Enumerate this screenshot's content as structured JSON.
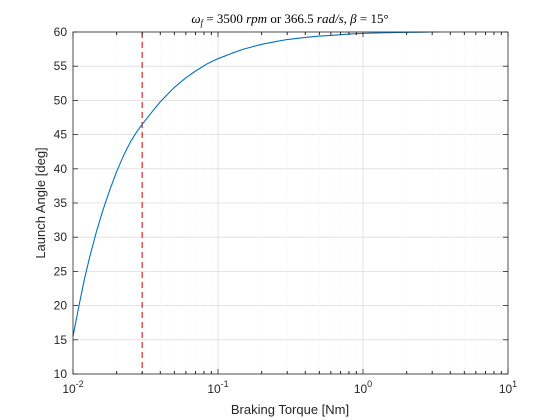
{
  "chart_data": {
    "type": "line",
    "title": {
      "omega": "ω",
      "omega_sub": "f",
      "eq": " = 3500 ",
      "rpm": "rpm",
      "or": " or 366.5 ",
      "rads": "rad/s",
      "sep": ", ",
      "beta": "β",
      "beta_val": " = 15°"
    },
    "xlabel": "Braking Torque [Nm]",
    "ylabel": "Launch Angle [deg]",
    "xscale": "log",
    "xlim": [
      0.01,
      10
    ],
    "ylim": [
      10,
      60
    ],
    "grid": true,
    "x_tick_labels": [
      {
        "value": 0.01,
        "base": "10",
        "exp": "-2"
      },
      {
        "value": 0.1,
        "base": "10",
        "exp": "-1"
      },
      {
        "value": 1,
        "base": "10",
        "exp": "0"
      },
      {
        "value": 10,
        "base": "10",
        "exp": "1"
      }
    ],
    "y_ticks": [
      10,
      15,
      20,
      25,
      30,
      35,
      40,
      45,
      50,
      55,
      60
    ],
    "series": [
      {
        "color": "#0072bd",
        "x": [
          0.01,
          0.011,
          0.012,
          0.013,
          0.0145,
          0.016,
          0.018,
          0.02,
          0.0225,
          0.025,
          0.0275,
          0.03,
          0.035,
          0.04,
          0.05,
          0.06,
          0.07,
          0.085,
          0.1,
          0.125,
          0.15,
          0.2,
          0.25,
          0.3,
          0.4,
          0.5,
          0.6,
          0.8,
          1.0,
          1.5,
          2.0,
          2.5,
          3.0,
          3.3
        ],
        "y": [
          15.5,
          20.0,
          23.9,
          27.0,
          30.8,
          33.8,
          37.0,
          39.6,
          42.1,
          44.0,
          45.4,
          46.5,
          48.3,
          49.8,
          51.9,
          53.3,
          54.3,
          55.4,
          56.1,
          56.9,
          57.5,
          58.2,
          58.6,
          58.9,
          59.2,
          59.4,
          59.5,
          59.7,
          59.8,
          59.9,
          59.95,
          59.97,
          60.0,
          60.0
        ]
      }
    ],
    "reference_lines": [
      {
        "orientation": "vertical",
        "x": 0.03,
        "color": "#d62728",
        "style": "dashed"
      }
    ]
  }
}
